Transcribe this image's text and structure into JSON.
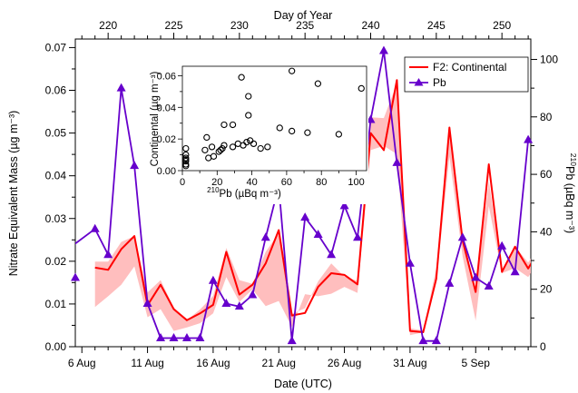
{
  "chart_data": {
    "type": "line",
    "top_axis": {
      "title": "Day of Year",
      "ticks": [
        220,
        225,
        230,
        235,
        240,
        245,
        250
      ],
      "range": [
        217.5,
        252.2
      ]
    },
    "x_axis": {
      "title": "Date (UTC)",
      "tick_labels": [
        "6 Aug",
        "11 Aug",
        "16 Aug",
        "21 Aug",
        "26 Aug",
        "31 Aug",
        "5 Sep"
      ],
      "tick_positions_doy": [
        218,
        223,
        228,
        233,
        238,
        243,
        248
      ]
    },
    "y_left": {
      "title": "Nitrate Equivalent Mass (µg m⁻³)",
      "range": [
        0,
        0.072
      ],
      "ticks": [
        "0.00",
        "0.01",
        "0.02",
        "0.03",
        "0.04",
        "0.05",
        "0.06",
        "0.07"
      ]
    },
    "y_right": {
      "title_sup": "210",
      "title_main": "Pb (µBq m⁻³)",
      "range": [
        0,
        107.1
      ],
      "ticks": [
        0,
        20,
        40,
        60,
        80,
        100
      ]
    },
    "legend": {
      "position": "top-right",
      "entries": [
        {
          "label": "F2: Continental",
          "color": "#ff0000",
          "marker": "line"
        },
        {
          "label": "Pb",
          "color": "#6600cc",
          "marker": "triangle"
        }
      ]
    },
    "series": [
      {
        "name": "F2: Continental",
        "color": "#ff0000",
        "axis": "left",
        "x": [
          219.0,
          220.0,
          221.0,
          222.0,
          223.0,
          224.0,
          225.0,
          226.0,
          227.0,
          228.0,
          229.0,
          230.0,
          231.0,
          232.0,
          233.0,
          234.0,
          235.0,
          236.0,
          237.0,
          238.0,
          239.0,
          240.0,
          241.0,
          242.0,
          243.0,
          244.0,
          245.0,
          246.0,
          247.0,
          248.0,
          249.0,
          250.0,
          251.0,
          252.0,
          253.0
        ],
        "y": [
          0.0185,
          0.018,
          0.0228,
          0.0259,
          0.0097,
          0.0145,
          0.0088,
          0.0062,
          0.0078,
          0.0098,
          0.0222,
          0.0122,
          0.0145,
          0.0195,
          0.0273,
          0.0073,
          0.0079,
          0.014,
          0.0172,
          0.0168,
          0.0146,
          0.05,
          0.046,
          0.0624,
          0.0037,
          0.0034,
          0.0159,
          0.0513,
          0.0249,
          0.0128,
          0.0427,
          0.0175,
          0.0234,
          0.0183,
          0.0234
        ],
        "band_low": [
          0.0093,
          0.0118,
          0.0145,
          0.0188,
          0.0069,
          0.0088,
          0.0037,
          0.0045,
          0.0055,
          0.0078,
          0.0163,
          0.0105,
          0.0134,
          0.0095,
          0.0107,
          0.0046,
          0.0123,
          0.0118,
          0.0124,
          0.014,
          0.0126,
          0.046,
          0.047,
          0.0451,
          0.0027,
          0.0034,
          0.0152,
          0.0445,
          0.0212,
          0.0061,
          0.0329,
          0.0172,
          0.0184,
          0.0163,
          0.0208
        ],
        "band_high": [
          0.0199,
          0.0199,
          0.0245,
          0.0259,
          0.0127,
          0.0156,
          0.0092,
          0.0062,
          0.0087,
          0.0119,
          0.0231,
          0.0156,
          0.0147,
          0.0222,
          0.0266,
          0.0077,
          0.009,
          0.0153,
          0.0195,
          0.0164,
          0.0154,
          0.0537,
          0.0535,
          0.0616,
          0.0043,
          0.0038,
          0.0184,
          0.0512,
          0.0262,
          0.0131,
          0.0387,
          0.0181,
          0.0234,
          0.0197,
          0.0244
        ]
      },
      {
        "name": "Pb",
        "color": "#6600cc",
        "axis": "right",
        "x": [
          214.0,
          219.0,
          220.0,
          221.0,
          222.0,
          223.0,
          224.0,
          225.0,
          226.0,
          227.0,
          228.0,
          229.0,
          230.0,
          231.0,
          232.0,
          233.0,
          234.0,
          235.0,
          236.0,
          237.0,
          238.0,
          239.0,
          240.0,
          241.0,
          242.0,
          243.0,
          244.0,
          245.0,
          246.0,
          247.0,
          248.0,
          249.0,
          250.0,
          251.0,
          252.0
        ],
        "y": [
          24,
          41,
          32,
          90,
          63,
          15,
          3,
          3,
          3,
          3,
          23,
          15,
          14,
          18,
          38,
          56,
          2,
          45,
          39,
          32,
          49,
          38,
          79,
          103,
          64,
          29,
          2,
          2,
          22,
          38,
          24,
          21,
          35,
          26,
          72
        ]
      }
    ],
    "inset": {
      "type": "scatter",
      "xlabel_sup": "210",
      "xlabel_main": "Pb (µBq m⁻³)",
      "ylabel": "Continental (µg m⁻³)",
      "xlim": [
        0,
        106
      ],
      "ylim": [
        0,
        0.066
      ],
      "xticks": [
        0,
        20,
        40,
        60,
        80,
        100
      ],
      "yticks": [
        "0.00",
        "0.02",
        "0.04",
        "0.06"
      ],
      "points": [
        [
          2,
          0.003
        ],
        [
          2,
          0.004
        ],
        [
          2,
          0.006
        ],
        [
          2,
          0.007
        ],
        [
          2,
          0.008
        ],
        [
          2,
          0.01
        ],
        [
          2,
          0.014
        ],
        [
          13,
          0.013
        ],
        [
          14,
          0.021
        ],
        [
          15,
          0.008
        ],
        [
          17,
          0.015
        ],
        [
          18,
          0.009
        ],
        [
          21,
          0.012
        ],
        [
          22,
          0.013
        ],
        [
          23,
          0.014
        ],
        [
          24,
          0.016
        ],
        [
          24,
          0.029
        ],
        [
          29,
          0.029
        ],
        [
          29,
          0.015
        ],
        [
          32,
          0.017
        ],
        [
          34,
          0.059
        ],
        [
          35,
          0.016
        ],
        [
          37,
          0.018
        ],
        [
          38,
          0.035
        ],
        [
          38,
          0.047
        ],
        [
          39,
          0.019
        ],
        [
          41,
          0.017
        ],
        [
          45,
          0.014
        ],
        [
          49,
          0.015
        ],
        [
          56,
          0.027
        ],
        [
          63,
          0.063
        ],
        [
          63,
          0.025
        ],
        [
          72,
          0.024
        ],
        [
          78,
          0.055
        ],
        [
          90,
          0.023
        ],
        [
          103,
          0.052
        ]
      ]
    }
  }
}
